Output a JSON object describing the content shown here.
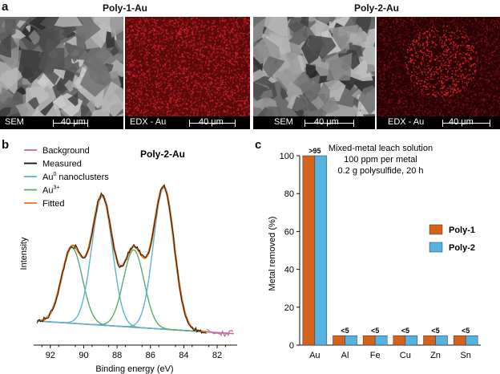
{
  "panel_a": {
    "letter": "a",
    "images": [
      {
        "title": "Poly-1-Au",
        "sem_label": "SEM",
        "sem_scale": "40 μm",
        "edx_label": "EDX - Au",
        "edx_scale": "40 μm"
      },
      {
        "title": "Poly-2-Au",
        "sem_label": "SEM",
        "sem_scale": "40 μm",
        "edx_label": "EDX - Au",
        "edx_scale": "40 μm"
      }
    ],
    "edx_color": "#e0242a"
  },
  "chart_data": [
    {
      "panel": "b",
      "type": "line",
      "title": "Poly-2-Au",
      "xlabel": "Binding energy (eV)",
      "ylabel": "Intensity",
      "xlim": [
        93,
        80.8
      ],
      "x_reversed": true,
      "xticks": [
        "92",
        "90",
        "88",
        "86",
        "84",
        "82"
      ],
      "y_ticks_shown": false,
      "legend_position": "top-left",
      "legend": [
        {
          "name": "Background",
          "color": "#c26a9c"
        },
        {
          "name": "Measured",
          "color": "#111111"
        },
        {
          "name": "Au",
          "sup": "0",
          "suffix": " nanoclusters",
          "color": "#5bb4d8"
        },
        {
          "name": "Au",
          "sup": "3+",
          "suffix": "",
          "color": "#5aac6a"
        },
        {
          "name": "Fitted",
          "color": "#e07a2a"
        }
      ],
      "peaks": [
        {
          "component": "Au3+",
          "center": 90.7,
          "height": 0.46
        },
        {
          "component": "Au0",
          "center": 88.9,
          "height": 0.78
        },
        {
          "component": "Au3+",
          "center": 87.0,
          "height": 0.47
        },
        {
          "component": "Au0",
          "center": 85.2,
          "height": 0.86
        }
      ]
    },
    {
      "panel": "c",
      "type": "bar",
      "ylabel": "Metal removed (%)",
      "ylim": [
        0,
        100
      ],
      "yticks": [
        "0",
        "20",
        "40",
        "60",
        "80",
        "100"
      ],
      "categories": [
        "Au",
        "Al",
        "Fe",
        "Cu",
        "Zn",
        "Sn"
      ],
      "series": [
        {
          "name": "Poly-1",
          "color": "#d4621c",
          "values": [
            100,
            5,
            5,
            5,
            5,
            5
          ]
        },
        {
          "name": "Poly-2",
          "color": "#56b2e0",
          "values": [
            100,
            5,
            5,
            5,
            5,
            5
          ]
        }
      ],
      "bar_labels": [
        ">95",
        "<5",
        "<5",
        "<5",
        "<5",
        "<5"
      ],
      "annotation": [
        "Mixed-metal leach solution",
        "100 ppm per metal",
        "0.2 g polysulfide, 20 h"
      ],
      "legend_position": "right"
    }
  ]
}
